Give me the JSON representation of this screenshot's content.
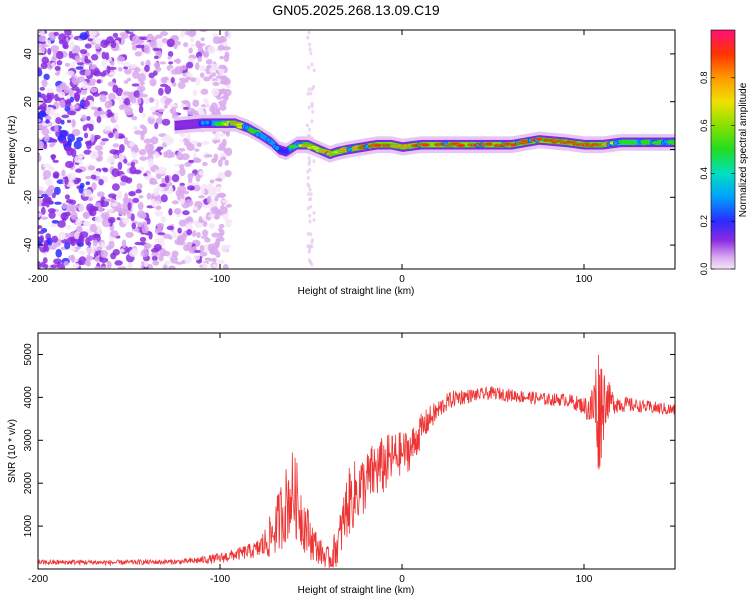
{
  "title": "GN05.2025.268.13.09.C19",
  "chart_data": [
    {
      "type": "heatmap",
      "title": "GN05.2025.268.13.09.C19",
      "xlabel": "Height of straight line (km)",
      "ylabel": "Frequency (Hz)",
      "xlim": [
        -200,
        150
      ],
      "ylim": [
        -50,
        50
      ],
      "x_ticks": [
        -200,
        -100,
        0,
        100
      ],
      "y_ticks": [
        -40,
        -20,
        0,
        20,
        40
      ],
      "colorbar": {
        "label": "Normalized spectral amplitude",
        "range": [
          0,
          1
        ],
        "ticks": [
          "0.0",
          "0.2",
          "0.4",
          "0.6",
          "0.8"
        ]
      },
      "noise_region_x": [
        -200,
        -95
      ],
      "ridge": {
        "x": [
          -125,
          -110,
          -100,
          -92,
          -85,
          -78,
          -72,
          -68,
          -64,
          -58,
          -52,
          -46,
          -40,
          -36,
          -30,
          -22,
          -14,
          -6,
          0,
          10,
          30,
          60,
          75,
          90,
          100,
          110,
          120,
          150
        ],
        "y": [
          10,
          11,
          11,
          11,
          9,
          6,
          3,
          0,
          -1,
          2,
          2,
          0,
          -2,
          -1,
          0,
          1,
          2,
          2,
          1,
          2,
          2,
          2,
          4,
          3,
          2,
          2,
          3,
          3
        ],
        "amp": [
          0.2,
          0.3,
          0.55,
          0.9,
          0.6,
          0.45,
          0.45,
          0.4,
          0.35,
          0.6,
          0.85,
          0.7,
          0.9,
          0.75,
          0.85,
          0.9,
          0.9,
          0.95,
          0.8,
          0.95,
          0.98,
          0.9,
          0.92,
          0.9,
          0.95,
          0.95,
          0.6,
          0.5
        ]
      }
    },
    {
      "type": "line",
      "xlabel": "Height of straight line (km)",
      "ylabel": "SNR (10 * v/v)",
      "xlim": [
        -200,
        150
      ],
      "ylim": [
        0,
        5500
      ],
      "x_ticks": [
        -200,
        -100,
        0,
        100
      ],
      "y_ticks": [
        1000,
        2000,
        3000,
        4000,
        5000
      ],
      "series": [
        {
          "name": "SNR",
          "color": "#ee3333",
          "x": [
            -200,
            -180,
            -160,
            -140,
            -120,
            -100,
            -90,
            -80,
            -75,
            -70,
            -65,
            -60,
            -57,
            -54,
            -50,
            -45,
            -40,
            -35,
            -30,
            -25,
            -20,
            -15,
            -10,
            -5,
            0,
            5,
            10,
            15,
            20,
            25,
            30,
            40,
            50,
            60,
            70,
            80,
            90,
            100,
            104,
            106,
            108,
            110,
            112,
            115,
            120,
            130,
            140,
            150
          ],
          "y": [
            150,
            160,
            150,
            160,
            170,
            250,
            350,
            450,
            600,
            900,
            1400,
            1800,
            1500,
            1100,
            700,
            400,
            200,
            600,
            1500,
            1800,
            2000,
            2300,
            2400,
            2600,
            2700,
            2800,
            3200,
            3500,
            3700,
            3900,
            4000,
            4050,
            4100,
            4050,
            4000,
            3950,
            3950,
            3800,
            3700,
            3900,
            3700,
            3900,
            4000,
            3900,
            3850,
            3800,
            3750,
            3700
          ],
          "noise": [
            60,
            60,
            60,
            60,
            60,
            120,
            150,
            200,
            400,
            600,
            900,
            1000,
            900,
            700,
            500,
            300,
            300,
            500,
            800,
            800,
            700,
            700,
            700,
            600,
            500,
            500,
            400,
            300,
            250,
            200,
            200,
            150,
            150,
            150,
            150,
            150,
            150,
            200,
            500,
            1000,
            1600,
            1200,
            600,
            300,
            200,
            150,
            150,
            150
          ]
        }
      ]
    }
  ]
}
